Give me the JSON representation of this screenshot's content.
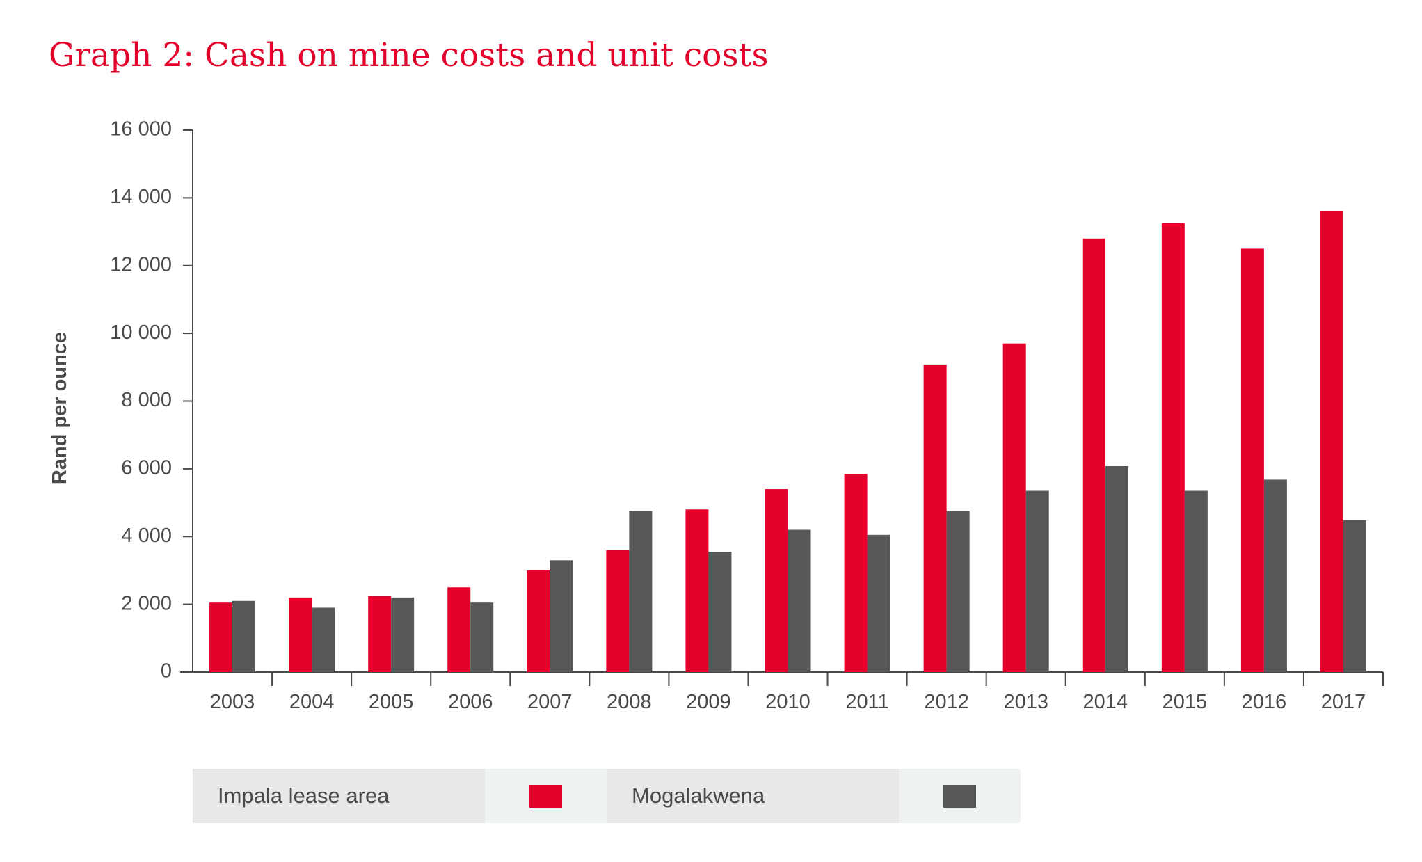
{
  "title": "Graph 2: Cash on mine costs and unit costs",
  "colors": {
    "title": "#e4002b",
    "axis": "#4a4a4a"
  },
  "chart_data": {
    "type": "bar",
    "title": "Graph 2: Cash on mine costs and unit costs",
    "xlabel": "",
    "ylabel": "Rand per ounce",
    "ylim": [
      0,
      16000
    ],
    "yticks": [
      0,
      2000,
      4000,
      6000,
      8000,
      10000,
      12000,
      14000,
      16000
    ],
    "ytick_labels": [
      "0",
      "2 000",
      "4 000",
      "6 000",
      "8 000",
      "10 000",
      "12 000",
      "14 000",
      "16 000"
    ],
    "categories": [
      "2003",
      "2004",
      "2005",
      "2006",
      "2007",
      "2008",
      "2009",
      "2010",
      "2011",
      "2012",
      "2013",
      "2014",
      "2015",
      "2016",
      "2017"
    ],
    "series": [
      {
        "name": "Impala lease area",
        "color": "#e4002b",
        "values": [
          2050,
          2200,
          2250,
          2500,
          3000,
          3600,
          4800,
          5400,
          5850,
          9080,
          9700,
          12800,
          13250,
          12500,
          13600
        ]
      },
      {
        "name": "Mogalakwena",
        "color": "#555759",
        "values": [
          2100,
          1900,
          2200,
          2050,
          3300,
          4750,
          3550,
          4200,
          4050,
          4750,
          5350,
          6080,
          5350,
          5680,
          4480
        ]
      }
    ],
    "grid": false,
    "legend_position": "bottom"
  },
  "legend": {
    "items": [
      {
        "label": "Impala lease area",
        "color": "#e4002b"
      },
      {
        "label": "Mogalakwena",
        "color": "#555759"
      }
    ]
  }
}
